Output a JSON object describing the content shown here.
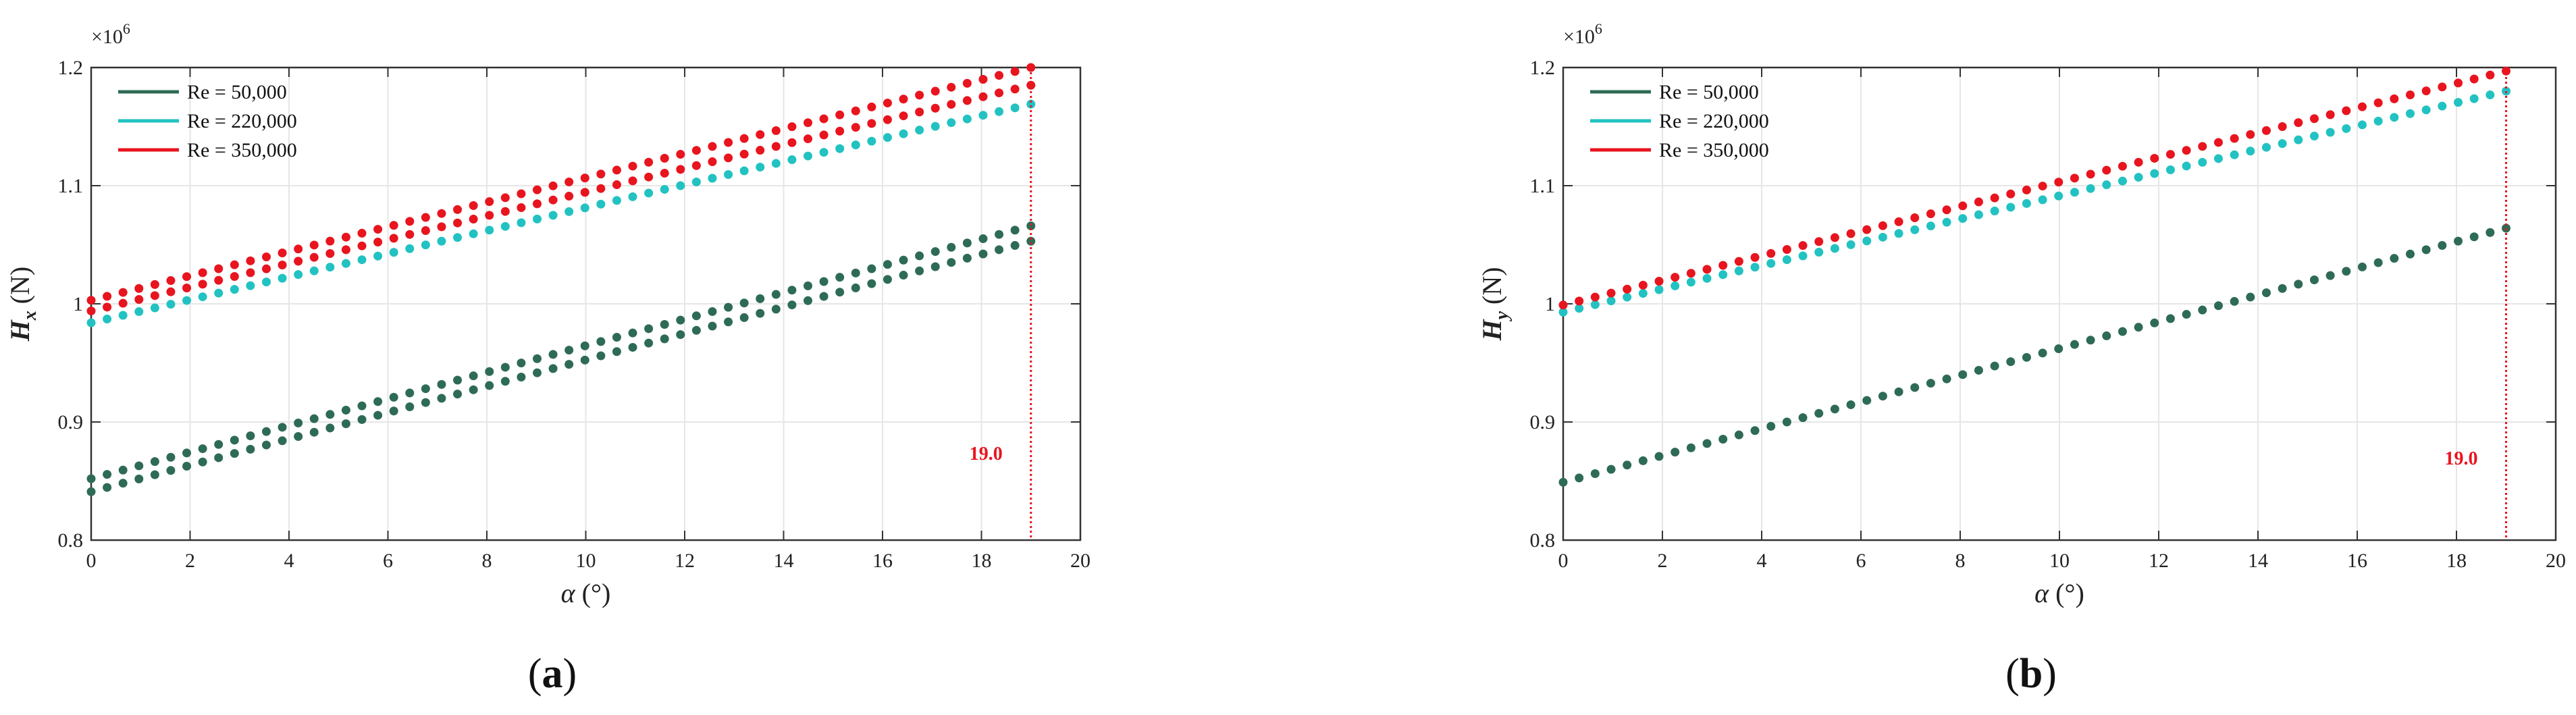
{
  "colors": {
    "re50": "#2e6b55",
    "re220": "#22c2c2",
    "re350": "#e8141e",
    "grid": "#e6e6e6",
    "axis": "#333333",
    "vline": "#e8141e"
  },
  "chart_data": [
    {
      "type": "scatter",
      "panel": "a",
      "caption": "(a)",
      "caption_letter": "a",
      "xlabel": "α (°)",
      "xlabel_symbol": "α",
      "xlabel_unit": "(°)",
      "ylabel": "Hx (N)",
      "ylabel_symbol": "H",
      "ylabel_subscript": "x",
      "ylabel_unit": "(N)",
      "y_exponent_label": "×10",
      "y_exponent": "6",
      "xlim": [
        0,
        20
      ],
      "ylim": [
        0.8,
        1.2
      ],
      "xticks": [
        0,
        2,
        4,
        6,
        8,
        10,
        12,
        14,
        16,
        18,
        20
      ],
      "xtick_labels": [
        "0",
        "2",
        "4",
        "6",
        "8",
        "10",
        "12",
        "14",
        "16",
        "18",
        "20"
      ],
      "yticks": [
        0.8,
        0.9,
        1.0,
        1.1,
        1.2
      ],
      "ytick_labels": [
        "0.8",
        "0.9",
        "1",
        "1.1",
        "1.2"
      ],
      "grid": true,
      "legend": "top-left",
      "vline": {
        "x": 19.0,
        "label": "19.0",
        "label_y": 0.868
      },
      "x_range": [
        0,
        19
      ],
      "n_points": 60,
      "series": [
        {
          "name": "Re = 50,000",
          "color_key": "re50",
          "lines": [
            [
              0.852,
              1.066
            ],
            [
              0.841,
              1.053
            ]
          ]
        },
        {
          "name": "Re = 220,000",
          "color_key": "re220",
          "lines": [
            [
              0.984,
              1.169
            ]
          ]
        },
        {
          "name": "Re = 350,000",
          "color_key": "re350",
          "lines": [
            [
              1.003,
              1.2
            ],
            [
              0.994,
              1.185
            ]
          ]
        }
      ]
    },
    {
      "type": "scatter",
      "panel": "b",
      "caption": "(b)",
      "caption_letter": "b",
      "xlabel": "α (°)",
      "xlabel_symbol": "α",
      "xlabel_unit": "(°)",
      "ylabel": "Hy (N)",
      "ylabel_symbol": "H",
      "ylabel_subscript": "y",
      "ylabel_unit": "(N)",
      "y_exponent_label": "×10",
      "y_exponent": "6",
      "xlim": [
        0,
        20
      ],
      "ylim": [
        0.8,
        1.2
      ],
      "xticks": [
        0,
        2,
        4,
        6,
        8,
        10,
        12,
        14,
        16,
        18,
        20
      ],
      "xtick_labels": [
        "0",
        "2",
        "4",
        "6",
        "8",
        "10",
        "12",
        "14",
        "16",
        "18",
        "20"
      ],
      "yticks": [
        0.8,
        0.9,
        1.0,
        1.1,
        1.2
      ],
      "ytick_labels": [
        "0.8",
        "0.9",
        "1",
        "1.1",
        "1.2"
      ],
      "grid": true,
      "legend": "top-left",
      "vline": {
        "x": 19.0,
        "label": "19.0",
        "label_y": 0.864
      },
      "x_range": [
        0,
        19
      ],
      "n_points": 60,
      "series": [
        {
          "name": "Re = 50,000",
          "color_key": "re50",
          "lines": [
            [
              0.849,
              1.064
            ]
          ]
        },
        {
          "name": "Re = 220,000",
          "color_key": "re220",
          "lines": [
            [
              0.993,
              1.18
            ]
          ]
        },
        {
          "name": "Re = 350,000",
          "color_key": "re350",
          "lines": [
            [
              0.999,
              1.197
            ]
          ]
        }
      ]
    }
  ]
}
